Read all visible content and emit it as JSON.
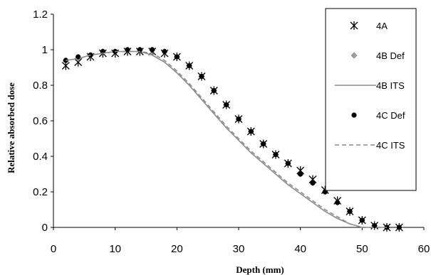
{
  "chart_data": {
    "type": "line",
    "xlabel": "Depth (mm)",
    "ylabel": "Relative absorbed dose",
    "xlim": [
      0,
      60
    ],
    "ylim": [
      0,
      1.2
    ],
    "x_ticks": [
      "0",
      "10",
      "20",
      "30",
      "40",
      "50",
      "60"
    ],
    "y_ticks": [
      "0",
      "0.2",
      "0.4",
      "0.6",
      "0.8",
      "1",
      "1.2"
    ],
    "grid": false,
    "legend_position": "top-right",
    "series": [
      {
        "name": "4A",
        "style": "asterisk-marker",
        "color": "#000000",
        "x": [
          2,
          4,
          6,
          8,
          10,
          12,
          14,
          16,
          18,
          20,
          22,
          24,
          26,
          28,
          30,
          32,
          34,
          36,
          38,
          40,
          42,
          44,
          46,
          48,
          50,
          52,
          54,
          56
        ],
        "y": [
          0.91,
          0.93,
          0.96,
          0.98,
          0.98,
          0.99,
          0.99,
          0.99,
          0.98,
          0.96,
          0.91,
          0.85,
          0.77,
          0.69,
          0.61,
          0.54,
          0.47,
          0.41,
          0.36,
          0.32,
          0.27,
          0.21,
          0.15,
          0.09,
          0.04,
          0.01,
          0.0,
          0.0
        ]
      },
      {
        "name": "4B Def",
        "style": "diamond-marker",
        "color": "#a0a0a0",
        "x": [
          2,
          4,
          6,
          8,
          10,
          12,
          14,
          16,
          18,
          20,
          22,
          24,
          26,
          28,
          30,
          32,
          34,
          36,
          38,
          40,
          42,
          44,
          46,
          48,
          50,
          52,
          54,
          56
        ],
        "y": [
          0.94,
          0.95,
          0.97,
          0.99,
          0.99,
          1.0,
          1.0,
          1.0,
          0.99,
          0.96,
          0.91,
          0.85,
          0.77,
          0.69,
          0.61,
          0.54,
          0.47,
          0.41,
          0.36,
          0.3,
          0.25,
          0.2,
          0.14,
          0.09,
          0.04,
          0.01,
          0.0,
          0.0
        ]
      },
      {
        "name": "4B ITS",
        "style": "solid-line",
        "color": "#8a8a8a",
        "x": [
          2,
          4,
          6,
          8,
          10,
          12,
          14,
          16,
          18,
          20,
          22,
          24,
          26,
          28,
          30,
          32,
          34,
          36,
          38,
          40,
          42,
          44,
          46,
          48,
          50,
          52,
          54
        ],
        "y": [
          0.94,
          0.95,
          0.97,
          0.98,
          0.99,
          0.99,
          0.99,
          0.97,
          0.93,
          0.87,
          0.8,
          0.72,
          0.64,
          0.56,
          0.49,
          0.42,
          0.36,
          0.3,
          0.24,
          0.19,
          0.14,
          0.09,
          0.05,
          0.02,
          0.0,
          0.0,
          0.0
        ]
      },
      {
        "name": "4C Def",
        "style": "dot-marker",
        "color": "#000000",
        "x": [
          2,
          4,
          6,
          8,
          10,
          12,
          14,
          16,
          18,
          20,
          22,
          24,
          26,
          28,
          30,
          32,
          34,
          36,
          38,
          40,
          42,
          44,
          46,
          48,
          50,
          52,
          54,
          56
        ],
        "y": [
          0.94,
          0.96,
          0.97,
          0.99,
          0.99,
          1.0,
          1.0,
          1.0,
          0.99,
          0.96,
          0.91,
          0.85,
          0.77,
          0.69,
          0.61,
          0.54,
          0.47,
          0.41,
          0.36,
          0.3,
          0.25,
          0.2,
          0.14,
          0.09,
          0.04,
          0.01,
          0.0,
          0.0
        ]
      },
      {
        "name": "4C ITS",
        "style": "dashed-line",
        "color": "#8a8a8a",
        "x": [
          2,
          4,
          6,
          8,
          10,
          12,
          14,
          16,
          18,
          20,
          22,
          24,
          26,
          28,
          30,
          32,
          34,
          36,
          38,
          40,
          42,
          44,
          46,
          48,
          50,
          52,
          54
        ],
        "y": [
          0.94,
          0.95,
          0.97,
          0.98,
          0.99,
          0.99,
          0.99,
          0.98,
          0.94,
          0.88,
          0.81,
          0.73,
          0.65,
          0.57,
          0.5,
          0.43,
          0.37,
          0.31,
          0.25,
          0.2,
          0.15,
          0.1,
          0.06,
          0.02,
          0.0,
          0.0,
          0.0
        ]
      }
    ]
  }
}
